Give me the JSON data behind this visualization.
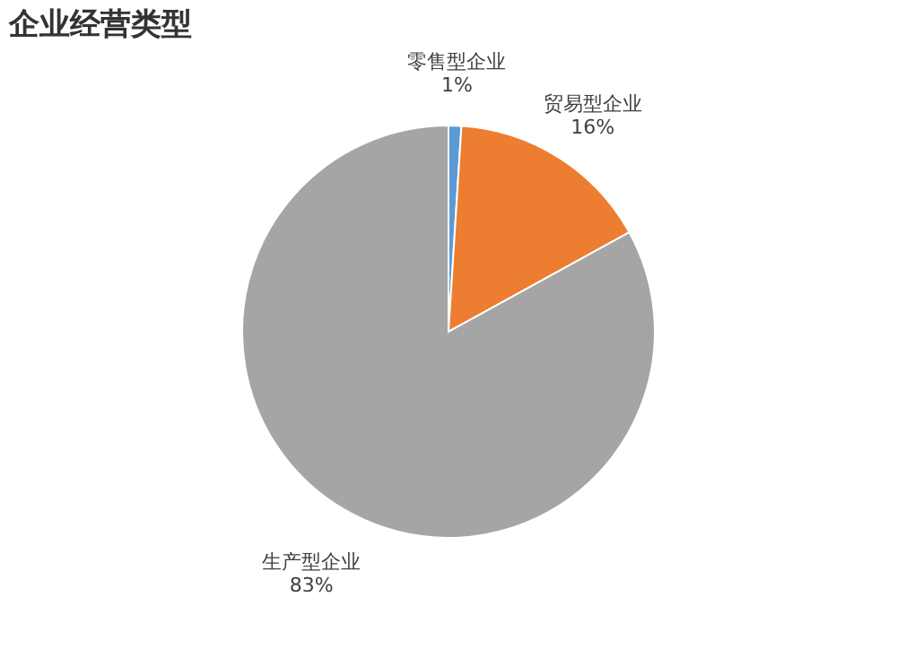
{
  "chart_data": {
    "type": "pie",
    "title": "企业经营类型",
    "categories": [
      "零售型企业",
      "贸易型企业",
      "生产型企业"
    ],
    "values": [
      1,
      16,
      83
    ],
    "colors": [
      "#5b9bd5",
      "#ed7d31",
      "#a5a5a5"
    ],
    "value_labels": [
      "1%",
      "16%",
      "83%"
    ],
    "legend": false
  }
}
